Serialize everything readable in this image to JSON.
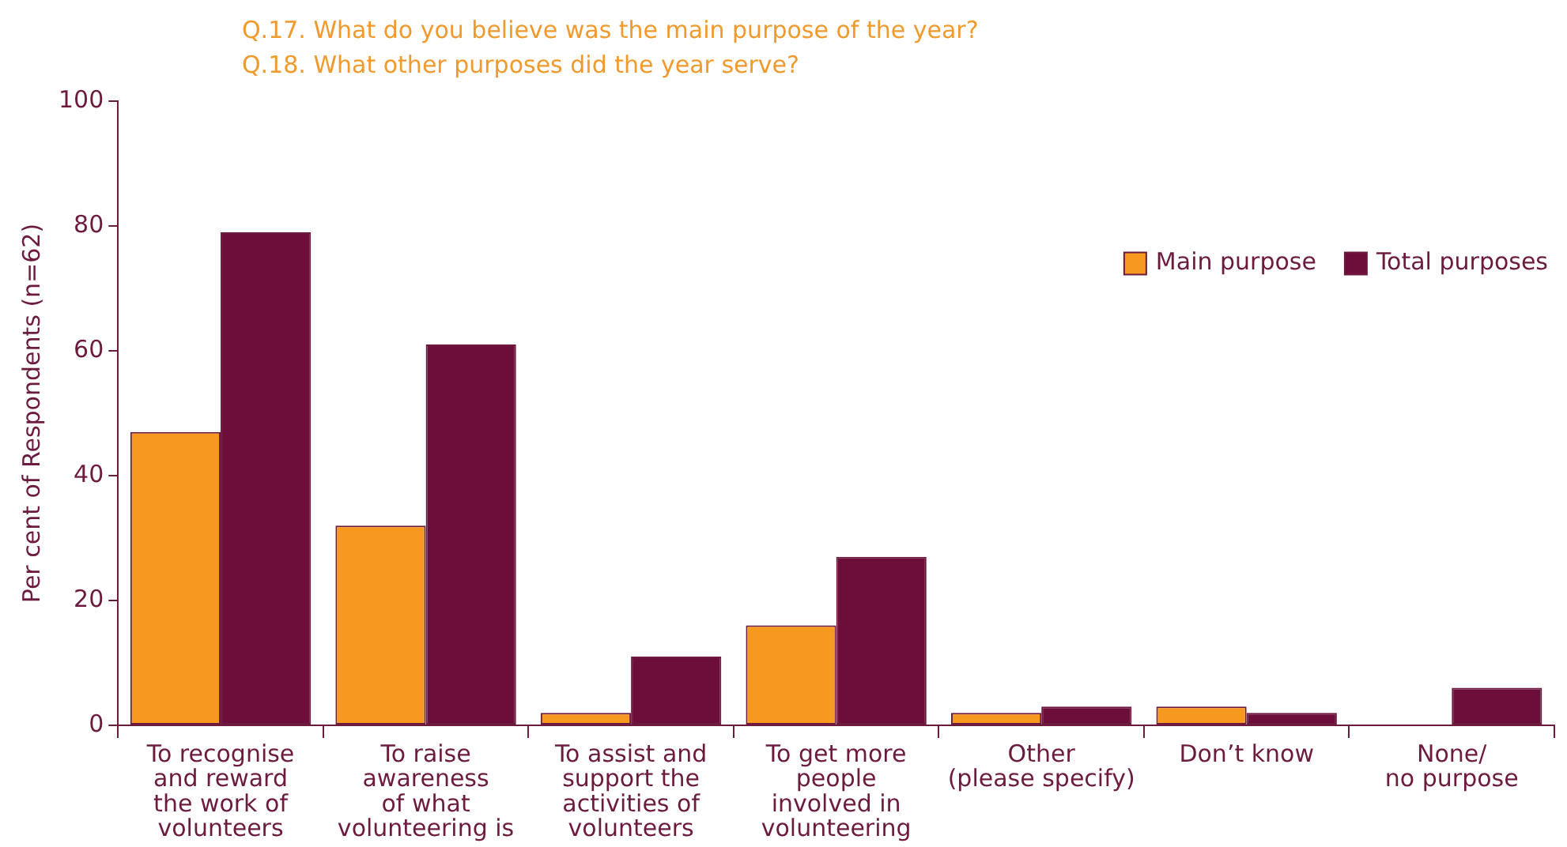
{
  "chart_data": {
    "type": "bar",
    "title": "Q.17.  What do you believe was the main purpose of the year?",
    "subtitle": "Q.18.  What other purposes did the year serve?",
    "ylabel": "Per cent of Respondents (n=62)",
    "categories": [
      "To recognise\nand reward\nthe work of\nvolunteers",
      "To raise\nawareness\nof what\nvolunteering is",
      "To assist and\nsupport the\nactivities of\nvolunteers",
      "To get more\npeople\ninvolved in\nvolunteering",
      "Other\n(please specify)",
      "Don’t know",
      "None/\nno purpose"
    ],
    "series": [
      {
        "name": "Main purpose",
        "color": "#f7991f",
        "values": [
          47,
          32,
          2,
          16,
          2,
          3,
          0
        ]
      },
      {
        "name": "Total purposes",
        "color": "#6d0e3a",
        "values": [
          79,
          61,
          11,
          27,
          3,
          2,
          6
        ]
      }
    ],
    "ylim": [
      0,
      100
    ],
    "yticks": [
      0,
      20,
      40,
      60,
      80,
      100
    ],
    "grid": false,
    "legend": "top right"
  }
}
